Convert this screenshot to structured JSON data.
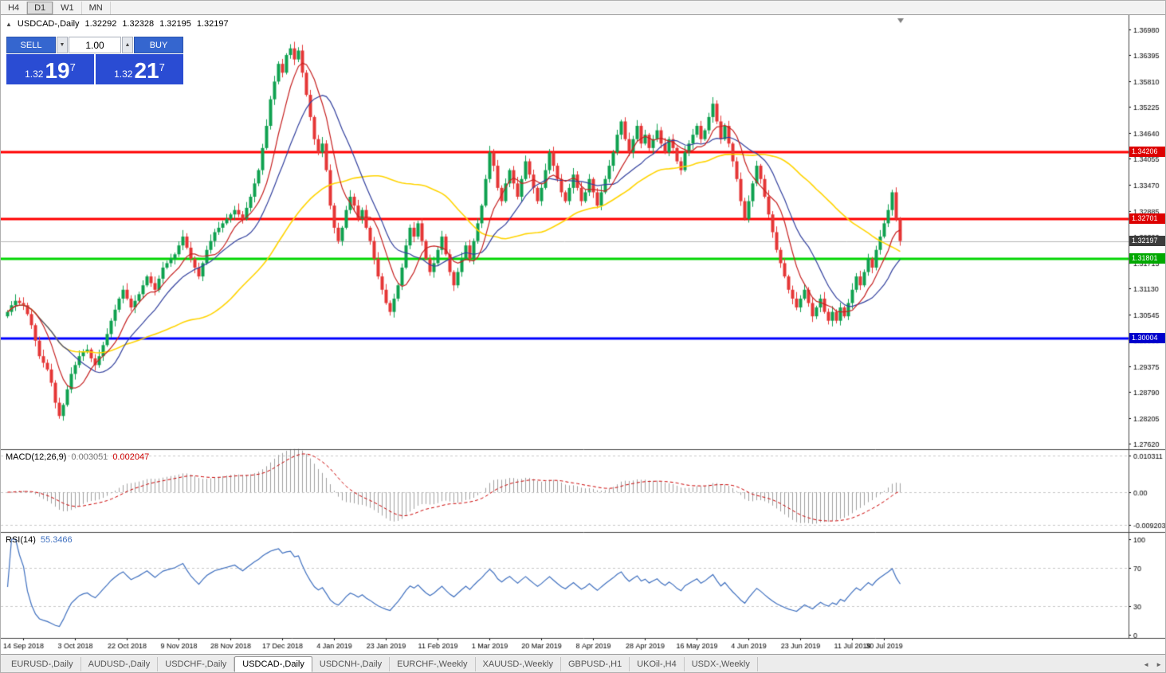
{
  "toolbar": {
    "timeframes": [
      {
        "label": "H4",
        "active": false
      },
      {
        "label": "D1",
        "active": true
      },
      {
        "label": "W1",
        "active": false
      },
      {
        "label": "MN",
        "active": false
      }
    ]
  },
  "chart_header": {
    "toggle_icon": "▲",
    "symbol": "USDCAD-,Daily",
    "open": "1.32292",
    "high": "1.32328",
    "low": "1.32195",
    "close": "1.32197"
  },
  "one_click": {
    "sell_label": "SELL",
    "buy_label": "BUY",
    "volume": "1.00",
    "spinner_down": "▼",
    "spinner_up": "▲",
    "sell_price": {
      "prefix": "1.32",
      "pips": "19",
      "fraction": "7"
    },
    "buy_price": {
      "prefix": "1.32",
      "pips": "21",
      "fraction": "7"
    }
  },
  "macd_panel": {
    "title": "MACD(12,26,9)",
    "main_value": "0.003051",
    "signal_value": "0.002047"
  },
  "rsi_panel": {
    "title": "RSI(14)",
    "value": "55.3466"
  },
  "tabbar": {
    "tabs": [
      {
        "label": "EURUSD-,Daily",
        "active": false
      },
      {
        "label": "AUDUSD-,Daily",
        "active": false
      },
      {
        "label": "USDCHF-,Daily",
        "active": false
      },
      {
        "label": "USDCAD-,Daily",
        "active": true
      },
      {
        "label": "USDCNH-,Daily",
        "active": false
      },
      {
        "label": "EURCHF-,Weekly",
        "active": false
      },
      {
        "label": "XAUUSD-,Weekly",
        "active": false
      },
      {
        "label": "GBPUSD-,H1",
        "active": false
      },
      {
        "label": "UKOil-,H4",
        "active": false
      },
      {
        "label": "USDX-,Weekly",
        "active": false
      }
    ],
    "scroll_left_icon": "◄",
    "scroll_right_icon": "►"
  },
  "chart_data": {
    "type": "candlestick",
    "title": "USDCAD-,Daily",
    "symbol": "USDCAD",
    "timeframe": "Daily",
    "last_ohlc": {
      "open": 1.32292,
      "high": 1.32328,
      "low": 1.32195,
      "close": 1.32197
    },
    "y_range": [
      1.275,
      1.373
    ],
    "axis_ticks": [
      "1.36980",
      "1.36395",
      "1.35810",
      "1.35225",
      "1.34640",
      "1.34055",
      "1.33470",
      "1.32885",
      "1.32300",
      "1.31715",
      "1.31130",
      "1.30545",
      "1.29960",
      "1.29375",
      "1.28790",
      "1.28205",
      "1.27620"
    ],
    "x_labels": [
      "14 Sep 2018",
      "3 Oct 2018",
      "22 Oct 2018",
      "9 Nov 2018",
      "28 Nov 2018",
      "17 Dec 2018",
      "4 Jan 2019",
      "23 Jan 2019",
      "11 Feb 2019",
      "1 Mar 2019",
      "20 Mar 2019",
      "8 Apr 2019",
      "28 Apr 2019",
      "16 May 2019",
      "4 Jun 2019",
      "23 Jun 2019",
      "11 Jul 2019",
      "30 Jul 2019"
    ],
    "label_indices": [
      4,
      17,
      30,
      43,
      56,
      69,
      82,
      95,
      108,
      121,
      134,
      147,
      160,
      173,
      186,
      199,
      212,
      220
    ],
    "up_color": "#0ea14f",
    "down_color": "#e53535",
    "ma_colors": {
      "fast": "#c62020",
      "medium": "#32409e",
      "slow": "#ffd400"
    },
    "hlines": [
      {
        "price": 1.34206,
        "label": "1.34206",
        "color": "#ff0000",
        "badge": "#dd0000",
        "width": 3
      },
      {
        "price": 1.32701,
        "label": "1.32701",
        "color": "#ff0000",
        "badge": "#dd0000",
        "width": 3
      },
      {
        "price": 1.31801,
        "label": "1.31801",
        "color": "#00d600",
        "badge": "#00a800",
        "width": 3
      },
      {
        "price": 1.30004,
        "label": "1.30004",
        "color": "#0000ff",
        "badge": "#0000cc",
        "width": 3
      }
    ],
    "current_price": {
      "price": 1.32197,
      "label": "1.32197",
      "line_color": "#b8b8b8",
      "badge": "#3c3c3c"
    },
    "candles": {
      "first_open": 1.305,
      "closes": [
        1.306,
        1.3075,
        1.3085,
        1.308,
        1.3075,
        1.3055,
        1.303,
        1.2995,
        1.296,
        1.2945,
        1.293,
        1.29,
        1.2855,
        1.2825,
        1.285,
        1.2885,
        1.292,
        1.294,
        1.296,
        1.297,
        1.2975,
        1.2955,
        1.294,
        1.296,
        1.2985,
        1.301,
        1.304,
        1.3065,
        1.309,
        1.311,
        1.309,
        1.307,
        1.3085,
        1.31,
        1.312,
        1.314,
        1.3125,
        1.311,
        1.3135,
        1.316,
        1.317,
        1.318,
        1.319,
        1.321,
        1.323,
        1.3205,
        1.318,
        1.316,
        1.314,
        1.317,
        1.32,
        1.322,
        1.324,
        1.325,
        1.326,
        1.327,
        1.328,
        1.329,
        1.328,
        1.327,
        1.3295,
        1.332,
        1.335,
        1.338,
        1.343,
        1.348,
        1.354,
        1.358,
        1.362,
        1.36,
        1.364,
        1.3655,
        1.363,
        1.365,
        1.36,
        1.355,
        1.35,
        1.345,
        1.342,
        1.344,
        1.338,
        1.33,
        1.325,
        1.322,
        1.325,
        1.329,
        1.332,
        1.33,
        1.327,
        1.329,
        1.325,
        1.322,
        1.318,
        1.314,
        1.311,
        1.308,
        1.306,
        1.309,
        1.312,
        1.316,
        1.321,
        1.325,
        1.323,
        1.326,
        1.322,
        1.318,
        1.315,
        1.317,
        1.32,
        1.323,
        1.319,
        1.315,
        1.312,
        1.315,
        1.318,
        1.321,
        1.318,
        1.322,
        1.326,
        1.33,
        1.336,
        1.342,
        1.339,
        1.334,
        1.331,
        1.335,
        1.338,
        1.335,
        1.332,
        1.336,
        1.34,
        1.337,
        1.334,
        1.331,
        1.334,
        1.338,
        1.342,
        1.339,
        1.336,
        1.333,
        1.331,
        1.334,
        1.337,
        1.334,
        1.331,
        1.333,
        1.336,
        1.333,
        1.33,
        1.333,
        1.336,
        1.339,
        1.342,
        1.346,
        1.349,
        1.345,
        1.342,
        1.345,
        1.348,
        1.344,
        1.346,
        1.343,
        1.345,
        1.347,
        1.344,
        1.342,
        1.345,
        1.343,
        1.34,
        1.338,
        1.342,
        1.344,
        1.346,
        1.348,
        1.345,
        1.347,
        1.35,
        1.353,
        1.349,
        1.345,
        1.348,
        1.344,
        1.34,
        1.336,
        1.331,
        1.327,
        1.331,
        1.335,
        1.339,
        1.336,
        1.332,
        1.328,
        1.324,
        1.32,
        1.317,
        1.314,
        1.311,
        1.309,
        1.307,
        1.309,
        1.311,
        1.308,
        1.305,
        1.307,
        1.309,
        1.306,
        1.304,
        1.306,
        1.304,
        1.307,
        1.305,
        1.308,
        1.311,
        1.314,
        1.312,
        1.315,
        1.318,
        1.316,
        1.32,
        1.323,
        1.326,
        1.329,
        1.333,
        1.327,
        1.322
      ]
    },
    "indicators": {
      "macd": {
        "params": [
          12,
          26,
          9
        ],
        "displayed_main": 0.003051,
        "displayed_signal": 0.002047,
        "axis_values": [
          0.010311,
          0,
          -0.009203
        ],
        "axis_labels": [
          "0.010311",
          "0.00",
          "-0.009203"
        ],
        "histogram_color": "#a0a0a0",
        "signal_color": "#cc0000"
      },
      "rsi": {
        "params": [
          14
        ],
        "displayed_value": 55.3466,
        "axis_values": [
          100,
          70,
          30,
          0
        ],
        "axis_labels": [
          "100",
          "70",
          "30",
          "0"
        ],
        "levels": [
          70,
          30
        ],
        "line_color": "#3e6fbf"
      }
    }
  }
}
